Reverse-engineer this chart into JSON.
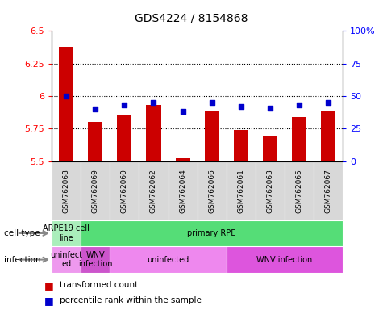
{
  "title": "GDS4224 / 8154868",
  "samples": [
    "GSM762068",
    "GSM762069",
    "GSM762060",
    "GSM762062",
    "GSM762064",
    "GSM762066",
    "GSM762061",
    "GSM762063",
    "GSM762065",
    "GSM762067"
  ],
  "transformed_counts": [
    6.38,
    5.8,
    5.85,
    5.93,
    5.52,
    5.88,
    5.74,
    5.69,
    5.84,
    5.88
  ],
  "percentile_ranks": [
    50,
    40,
    43,
    45,
    38,
    45,
    42,
    41,
    43,
    45
  ],
  "y_min": 5.5,
  "y_max": 6.5,
  "y_ticks": [
    5.5,
    5.75,
    6.0,
    6.25,
    6.5
  ],
  "y_tick_labels": [
    "5.5",
    "5.75",
    "6",
    "6.25",
    "6.5"
  ],
  "right_y_ticks": [
    0,
    25,
    50,
    75,
    100
  ],
  "right_y_labels": [
    "0",
    "25",
    "50",
    "75",
    "100%"
  ],
  "bar_color": "#cc0000",
  "dot_color": "#0000cc",
  "cell_type_groups": [
    {
      "label": "ARPE19 cell\nline",
      "start": 0,
      "end": 1,
      "color": "#aaeebb"
    },
    {
      "label": "primary RPE",
      "start": 1,
      "end": 10,
      "color": "#55dd77"
    }
  ],
  "infection_groups": [
    {
      "label": "uninfect\ned",
      "start": 0,
      "end": 1,
      "color": "#ee99ee"
    },
    {
      "label": "WNV\ninfection",
      "start": 1,
      "end": 2,
      "color": "#cc55cc"
    },
    {
      "label": "uninfected",
      "start": 2,
      "end": 6,
      "color": "#ee88ee"
    },
    {
      "label": "WNV infection",
      "start": 6,
      "end": 10,
      "color": "#dd55dd"
    }
  ],
  "cell_type_label": "cell type",
  "infection_label": "infection",
  "legend_items": [
    "transformed count",
    "percentile rank within the sample"
  ],
  "xlabel_bg": "#d8d8d8",
  "plot_bg": "#ffffff"
}
